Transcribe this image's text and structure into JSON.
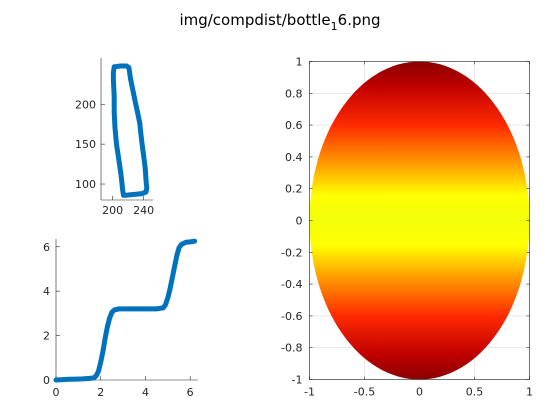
{
  "figure": {
    "title_main": "img/compdist/bottle",
    "title_sub": "1",
    "title_tail": "6.png"
  },
  "chart_data": [
    {
      "type": "line",
      "id": "bottle-contour",
      "series_color": "#0072BD",
      "x_ticks": [
        200,
        240
      ],
      "y_ticks": [
        100,
        150,
        200
      ],
      "xlim": [
        185,
        252
      ],
      "ylim": [
        80,
        258
      ],
      "box": false,
      "grid": false,
      "contour": [
        [
          202,
          247
        ],
        [
          210,
          248
        ],
        [
          218,
          248
        ],
        [
          221,
          246
        ],
        [
          223,
          232
        ],
        [
          226,
          218
        ],
        [
          229,
          204
        ],
        [
          232,
          190
        ],
        [
          235,
          176
        ],
        [
          236,
          166
        ],
        [
          238,
          150
        ],
        [
          240,
          135
        ],
        [
          242,
          120
        ],
        [
          243,
          105
        ],
        [
          244,
          95
        ],
        [
          243,
          90
        ],
        [
          238,
          88
        ],
        [
          228,
          87
        ],
        [
          218,
          86
        ],
        [
          214,
          86
        ],
        [
          213,
          92
        ],
        [
          211,
          110
        ],
        [
          208,
          130
        ],
        [
          205,
          150
        ],
        [
          203,
          170
        ],
        [
          202,
          190
        ],
        [
          202,
          210
        ],
        [
          201,
          230
        ],
        [
          201,
          240
        ],
        [
          202,
          247
        ]
      ]
    },
    {
      "type": "scatter",
      "id": "cumulative-distance",
      "series_color": "#0072BD",
      "x_ticks": [
        0,
        2,
        4,
        6
      ],
      "y_ticks": [
        0,
        2,
        4,
        6
      ],
      "xlim": [
        0,
        6.35
      ],
      "ylim": [
        0,
        6.35
      ],
      "box": false,
      "grid": false,
      "points": [
        [
          0.0,
          0.0
        ],
        [
          0.3,
          0.02
        ],
        [
          0.6,
          0.03
        ],
        [
          0.9,
          0.04
        ],
        [
          1.2,
          0.05
        ],
        [
          1.5,
          0.07
        ],
        [
          1.7,
          0.1
        ],
        [
          1.8,
          0.2
        ],
        [
          1.9,
          0.4
        ],
        [
          2.0,
          0.8
        ],
        [
          2.1,
          1.3
        ],
        [
          2.2,
          1.9
        ],
        [
          2.3,
          2.4
        ],
        [
          2.4,
          2.8
        ],
        [
          2.5,
          3.05
        ],
        [
          2.6,
          3.15
        ],
        [
          2.8,
          3.2
        ],
        [
          3.0,
          3.2
        ],
        [
          3.5,
          3.2
        ],
        [
          4.0,
          3.2
        ],
        [
          4.5,
          3.2
        ],
        [
          4.8,
          3.25
        ],
        [
          4.9,
          3.4
        ],
        [
          5.0,
          3.7
        ],
        [
          5.1,
          4.1
        ],
        [
          5.2,
          4.6
        ],
        [
          5.3,
          5.1
        ],
        [
          5.4,
          5.6
        ],
        [
          5.5,
          5.95
        ],
        [
          5.6,
          6.1
        ],
        [
          5.8,
          6.2
        ],
        [
          6.0,
          6.22
        ],
        [
          6.2,
          6.25
        ]
      ]
    },
    {
      "type": "heatmap",
      "id": "distance-ellipse",
      "colormap": "jet",
      "x_ticks": [
        -1,
        -0.5,
        0,
        0.5,
        1
      ],
      "y_ticks": [
        -1,
        -0.8,
        -0.6,
        -0.4,
        -0.2,
        0,
        0.2,
        0.4,
        0.6,
        0.8,
        1
      ],
      "x_tick_labels": [
        "-1",
        "-0.5",
        "0",
        "0.5",
        "1"
      ],
      "y_tick_labels": [
        "-1",
        "-0.8",
        "-0.6",
        "-0.4",
        "-0.2",
        "0",
        "0.2",
        "0.4",
        "0.6",
        "0.8",
        "1"
      ],
      "xlim": [
        -1,
        1
      ],
      "ylim": [
        -1,
        1
      ],
      "grid": true,
      "box": true,
      "domain": "unit disk",
      "color_extremes": {
        "low": "#0000C0",
        "high": "#8B0000"
      }
    }
  ]
}
